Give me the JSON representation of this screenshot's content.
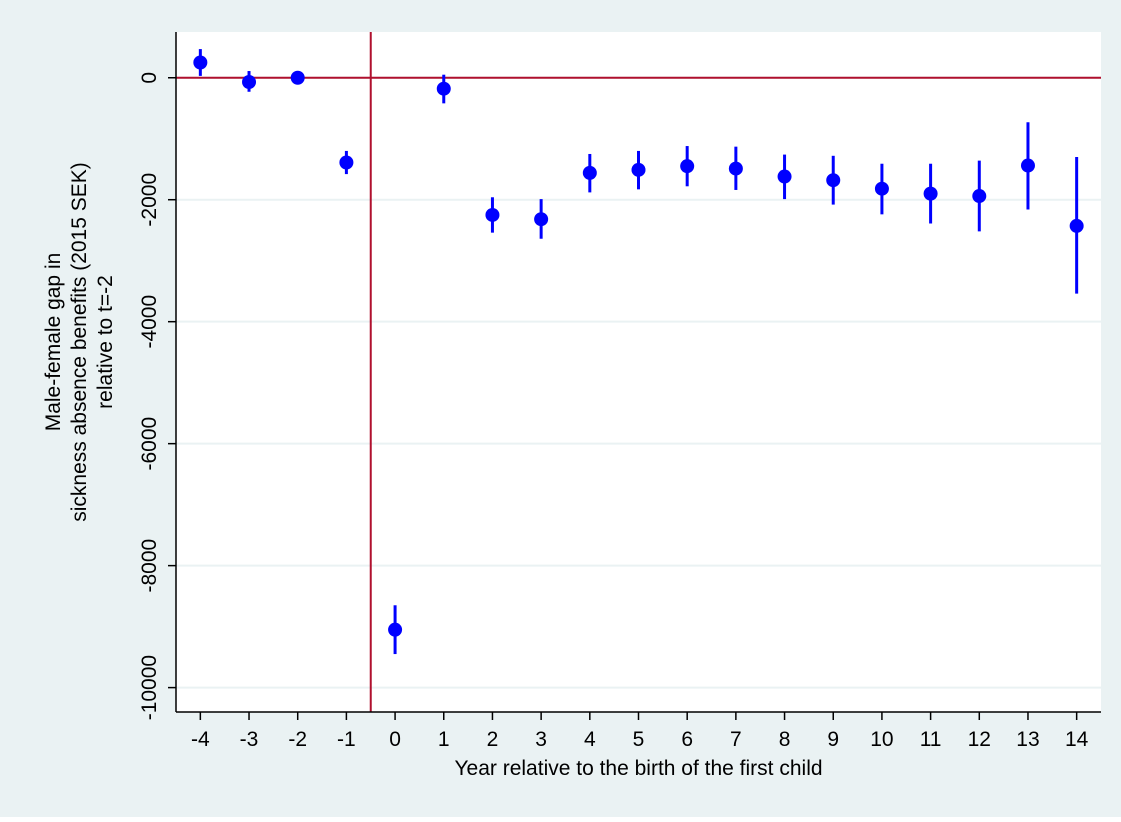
{
  "chart_data": {
    "type": "scatter",
    "subtype": "coefficient plot with confidence intervals",
    "title": "",
    "xlabel": "Year relative to the birth of the first child",
    "ylabel_lines": [
      "Male-female gap in",
      "sickness absence benefits (2015 SEK)",
      "relative to t=-2"
    ],
    "x_ticks": [
      "-4",
      "-3",
      "-2",
      "-1",
      "0",
      "1",
      "2",
      "3",
      "4",
      "5",
      "6",
      "7",
      "8",
      "9",
      "10",
      "11",
      "12",
      "13",
      "14"
    ],
    "y_ticks": [
      "0",
      "-2000",
      "-4000",
      "-6000",
      "-8000",
      "-10000"
    ],
    "y_tick_values": [
      0,
      -2000,
      -4000,
      -6000,
      -8000,
      -10000
    ],
    "xlim": [
      -4.5,
      14.5
    ],
    "ylim": [
      -10400,
      750
    ],
    "grid": "horizontal",
    "reference_lines": {
      "vertical_at": -0.5,
      "horizontal_at": 0
    },
    "points": [
      {
        "x": -4,
        "y": 250,
        "lo": 30,
        "hi": 470
      },
      {
        "x": -3,
        "y": -70,
        "lo": -230,
        "hi": 110
      },
      {
        "x": -2,
        "y": 0,
        "lo": 0,
        "hi": 0
      },
      {
        "x": -1,
        "y": -1390,
        "lo": -1580,
        "hi": -1200
      },
      {
        "x": 0,
        "y": -9050,
        "lo": -9450,
        "hi": -8650
      },
      {
        "x": 1,
        "y": -180,
        "lo": -420,
        "hi": 50
      },
      {
        "x": 2,
        "y": -2250,
        "lo": -2540,
        "hi": -1960
      },
      {
        "x": 3,
        "y": -2320,
        "lo": -2640,
        "hi": -1990
      },
      {
        "x": 4,
        "y": -1560,
        "lo": -1880,
        "hi": -1250
      },
      {
        "x": 5,
        "y": -1510,
        "lo": -1830,
        "hi": -1200
      },
      {
        "x": 6,
        "y": -1450,
        "lo": -1780,
        "hi": -1120
      },
      {
        "x": 7,
        "y": -1490,
        "lo": -1840,
        "hi": -1130
      },
      {
        "x": 8,
        "y": -1620,
        "lo": -1990,
        "hi": -1260
      },
      {
        "x": 9,
        "y": -1680,
        "lo": -2080,
        "hi": -1280
      },
      {
        "x": 10,
        "y": -1820,
        "lo": -2240,
        "hi": -1410
      },
      {
        "x": 11,
        "y": -1900,
        "lo": -2390,
        "hi": -1410
      },
      {
        "x": 12,
        "y": -1940,
        "lo": -2520,
        "hi": -1360
      },
      {
        "x": 13,
        "y": -1440,
        "lo": -2160,
        "hi": -730
      },
      {
        "x": 14,
        "y": -2430,
        "lo": -3540,
        "hi": -1300
      }
    ],
    "colors": {
      "background": "#ffffff",
      "outer_background": "#eaf2f3",
      "marker": "#0000ff",
      "reference_line": "#b0102e",
      "axis": "#000000",
      "grid": "#eaf2f3"
    }
  }
}
